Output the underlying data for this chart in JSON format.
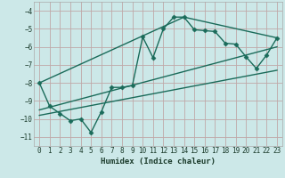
{
  "xlabel": "Humidex (Indice chaleur)",
  "bg_color": "#cce8e8",
  "grid_color": "#c0a8a8",
  "line_color": "#1a6b5a",
  "xlim": [
    -0.5,
    23.5
  ],
  "ylim": [
    -11.5,
    -3.5
  ],
  "xticks": [
    0,
    1,
    2,
    3,
    4,
    5,
    6,
    7,
    8,
    9,
    10,
    11,
    12,
    13,
    14,
    15,
    16,
    17,
    18,
    19,
    20,
    21,
    22,
    23
  ],
  "yticks": [
    -11,
    -10,
    -9,
    -8,
    -7,
    -6,
    -5,
    -4
  ],
  "main_x": [
    0,
    1,
    2,
    3,
    4,
    5,
    6,
    7,
    8,
    9,
    10,
    11,
    12,
    13,
    14,
    15,
    16,
    17,
    18,
    19,
    20,
    21,
    22,
    23
  ],
  "main_y": [
    -8.0,
    -9.3,
    -9.7,
    -10.1,
    -10.0,
    -10.75,
    -9.6,
    -8.25,
    -8.25,
    -8.15,
    -5.45,
    -6.6,
    -5.0,
    -4.35,
    -4.35,
    -5.05,
    -5.1,
    -5.15,
    -5.8,
    -5.85,
    -6.55,
    -7.2,
    -6.45,
    -5.5
  ],
  "trend_line1_x": [
    0,
    23
  ],
  "trend_line1_y": [
    -9.5,
    -6.0
  ],
  "trend_line2_x": [
    0,
    23
  ],
  "trend_line2_y": [
    -9.8,
    -7.3
  ],
  "trend_line3_x": [
    0,
    14,
    23
  ],
  "trend_line3_y": [
    -8.0,
    -4.35,
    -5.5
  ]
}
